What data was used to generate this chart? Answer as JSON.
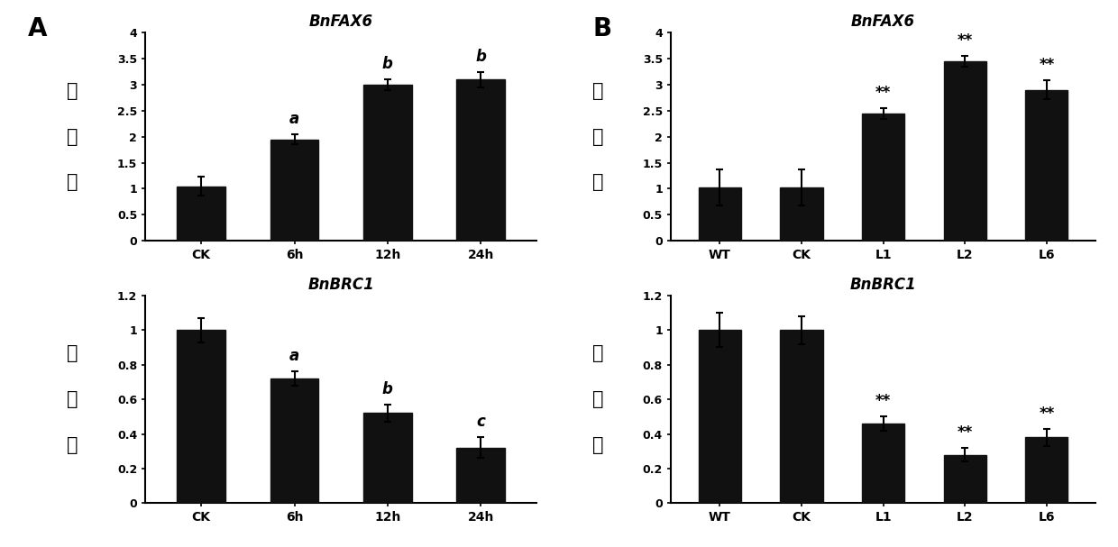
{
  "panel_A_FAX6": {
    "categories": [
      "CK",
      "6h",
      "12h",
      "24h"
    ],
    "values": [
      1.05,
      1.95,
      3.0,
      3.1
    ],
    "errors": [
      0.18,
      0.1,
      0.1,
      0.15
    ],
    "labels": [
      "",
      "a",
      "b",
      "b"
    ],
    "title": "BnFAX6",
    "ylim": [
      0,
      4
    ],
    "yticks": [
      0,
      0.5,
      1,
      1.5,
      2,
      2.5,
      3,
      3.5,
      4
    ],
    "ytick_labels": [
      "0",
      "0.5",
      "1",
      "1.5",
      "2",
      "2.5",
      "3",
      "3.5",
      "4"
    ]
  },
  "panel_A_BRC1": {
    "categories": [
      "CK",
      "6h",
      "12h",
      "24h"
    ],
    "values": [
      1.0,
      0.72,
      0.52,
      0.32
    ],
    "errors": [
      0.07,
      0.04,
      0.05,
      0.06
    ],
    "labels": [
      "",
      "a",
      "b",
      "c"
    ],
    "title": "BnBRC1",
    "ylim": [
      0,
      1.2
    ],
    "yticks": [
      0,
      0.2,
      0.4,
      0.6,
      0.8,
      1.0,
      1.2
    ],
    "ytick_labels": [
      "0",
      "0.2",
      "0.4",
      "0.6",
      "0.8",
      "1",
      "1.2"
    ]
  },
  "panel_B_FAX6": {
    "categories": [
      "WT",
      "CK",
      "L1",
      "L2",
      "L6"
    ],
    "values": [
      1.02,
      1.02,
      2.45,
      3.45,
      2.9
    ],
    "errors": [
      0.35,
      0.35,
      0.1,
      0.1,
      0.18
    ],
    "labels": [
      "",
      "",
      "**",
      "**",
      "**"
    ],
    "title": "BnFAX6",
    "ylim": [
      0,
      4
    ],
    "yticks": [
      0,
      0.5,
      1,
      1.5,
      2,
      2.5,
      3,
      3.5,
      4
    ],
    "ytick_labels": [
      "0",
      "0.5",
      "1",
      "1.5",
      "2",
      "2.5",
      "3",
      "3.5",
      "4"
    ]
  },
  "panel_B_BRC1": {
    "categories": [
      "WT",
      "CK",
      "L1",
      "L2",
      "L6"
    ],
    "values": [
      1.0,
      1.0,
      0.46,
      0.28,
      0.38
    ],
    "errors": [
      0.1,
      0.08,
      0.04,
      0.04,
      0.05
    ],
    "labels": [
      "",
      "",
      "**",
      "**",
      "**"
    ],
    "title": "BnBRC1",
    "ylim": [
      0,
      1.2
    ],
    "yticks": [
      0,
      0.2,
      0.4,
      0.6,
      0.8,
      1.0,
      1.2
    ],
    "ytick_labels": [
      "0",
      "0.2",
      "0.4",
      "0.6",
      "0.8",
      "1",
      "1.2"
    ]
  },
  "bar_color": "#111111",
  "bar_width": 0.52,
  "label_A": "A",
  "label_B": "B",
  "ylabel_chars": [
    "相",
    "对",
    "値"
  ],
  "background_color": "#ffffff"
}
